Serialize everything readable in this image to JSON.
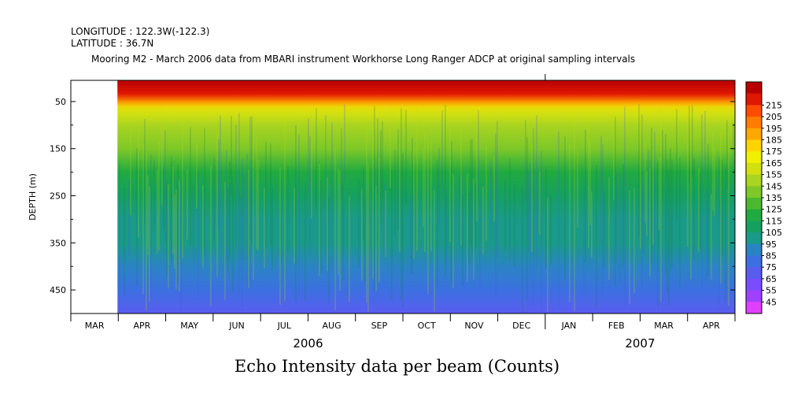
{
  "header": {
    "longitude": "LONGITUDE : 122.3W(-122.3)",
    "latitude": "LATITUDE : 36.7N",
    "title": "Mooring M2 - March 2006 data from MBARI instrument Workhorse Long Ranger ADCP at original sampling intervals"
  },
  "footer": "Echo Intensity data per beam (Counts)",
  "chart_data": {
    "type": "heatmap",
    "title": "Mooring M2 - March 2006 data from MBARI instrument Workhorse Long Ranger ADCP at original sampling intervals",
    "ylabel": "DEPTH (m)",
    "xlabel": "",
    "y_range_m": [
      5,
      500
    ],
    "y_inverted": true,
    "y_ticks": [
      50,
      150,
      250,
      350,
      450
    ],
    "y_minor_ticks": [
      100,
      200,
      300,
      400
    ],
    "x_months": [
      "MAR",
      "APR",
      "MAY",
      "JUN",
      "JUL",
      "AUG",
      "SEP",
      "OCT",
      "NOV",
      "DEC",
      "JAN",
      "FEB",
      "MAR",
      "APR"
    ],
    "x_years": [
      "2006",
      "2007"
    ],
    "data_start_month_index": 1,
    "colorbar": {
      "levels": [
        45,
        55,
        65,
        75,
        85,
        95,
        105,
        115,
        125,
        135,
        145,
        155,
        165,
        175,
        185,
        195,
        205,
        215
      ],
      "colors": [
        "#e040fb",
        "#a040ff",
        "#7a4cff",
        "#5a5cf0",
        "#3c70e0",
        "#2a84c4",
        "#1a9a88",
        "#16a060",
        "#20aa40",
        "#4cb830",
        "#7ec828",
        "#aad420",
        "#d2e010",
        "#f0f000",
        "#ffd400",
        "#ffa800",
        "#ff7c00",
        "#ff4c00",
        "#e01800",
        "#b80000"
      ]
    },
    "depth_profile": [
      {
        "depth": 5,
        "counts": 210
      },
      {
        "depth": 25,
        "counts": 195
      },
      {
        "depth": 50,
        "counts": 175
      },
      {
        "depth": 75,
        "counts": 155
      },
      {
        "depth": 100,
        "counts": 148
      },
      {
        "depth": 150,
        "counts": 135
      },
      {
        "depth": 200,
        "counts": 120
      },
      {
        "depth": 250,
        "counts": 110
      },
      {
        "depth": 300,
        "counts": 102
      },
      {
        "depth": 350,
        "counts": 97
      },
      {
        "depth": 400,
        "counts": 92
      },
      {
        "depth": 450,
        "counts": 83
      },
      {
        "depth": 500,
        "counts": 68
      }
    ]
  }
}
